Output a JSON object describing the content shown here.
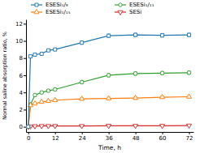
{
  "chart_data": {
    "type": "line",
    "xlabel": "Time, h",
    "ylabel": "Normal saline absorption ratio, %",
    "x": [
      0,
      1,
      3,
      6,
      9,
      12,
      24,
      36,
      48,
      60,
      72
    ],
    "xlim": [
      -1,
      74
    ],
    "xticks": [
      0,
      12,
      24,
      36,
      48,
      60,
      72
    ],
    "ylim": [
      -0.6,
      12.5
    ],
    "yticks": [
      0,
      2,
      4,
      6,
      8,
      10,
      12
    ],
    "legend": "top",
    "series": [
      {
        "name": "ESESi₁/₉",
        "marker": "square",
        "values": [
          0.0,
          8.2,
          8.4,
          8.5,
          8.9,
          9.0,
          9.8,
          10.6,
          10.7,
          10.65,
          10.7
        ],
        "errors": [
          0.0,
          0.18,
          0.15,
          0.15,
          0.15,
          0.15,
          0.2,
          0.2,
          0.2,
          0.2,
          0.2
        ]
      },
      {
        "name": "ESESi₁/₁₅",
        "marker": "triangle-up",
        "values": [
          0.0,
          2.5,
          2.7,
          2.9,
          3.0,
          3.1,
          3.25,
          3.3,
          3.35,
          3.45,
          3.5
        ],
        "errors": [
          0.0,
          0.12,
          0.12,
          0.12,
          0.12,
          0.12,
          0.15,
          0.15,
          0.15,
          0.15,
          0.15
        ]
      },
      {
        "name": "ESESi₁/₁₁",
        "marker": "circle",
        "values": [
          0.0,
          2.6,
          3.7,
          4.0,
          4.2,
          4.35,
          5.2,
          6.0,
          6.2,
          6.25,
          6.3
        ],
        "errors": [
          0.0,
          0.15,
          0.15,
          0.15,
          0.15,
          0.15,
          0.2,
          0.2,
          0.2,
          0.2,
          0.2
        ]
      },
      {
        "name": "SESi",
        "marker": "triangle-down",
        "values": [
          0.0,
          0.05,
          0.08,
          0.1,
          0.1,
          0.1,
          0.1,
          0.12,
          0.12,
          0.12,
          0.15
        ],
        "errors": [
          0.0,
          0.04,
          0.04,
          0.04,
          0.04,
          0.04,
          0.04,
          0.04,
          0.04,
          0.04,
          0.04
        ]
      }
    ]
  }
}
